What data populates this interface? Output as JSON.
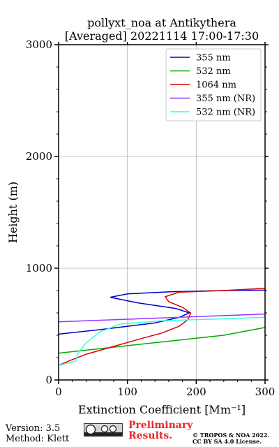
{
  "chart_data": {
    "type": "line",
    "title": "pollyxt_noa at Antikythera",
    "subtitle": "[Averaged] 20221114 17:00-17:30",
    "xlabel": "Extinction Coefficient [Mm⁻¹]",
    "ylabel": "Height (m)",
    "xlim": [
      0,
      300
    ],
    "ylim": [
      0,
      3000
    ],
    "xticks": [
      0,
      100,
      200,
      300
    ],
    "yticks": [
      0,
      1000,
      2000,
      3000
    ],
    "grid": true,
    "legend_position": "top-right",
    "series": [
      {
        "name": "355 nm",
        "color": "#0000cc",
        "points": [
          [
            0,
            410
          ],
          [
            60,
            450
          ],
          [
            140,
            510
          ],
          [
            175,
            560
          ],
          [
            190,
            600
          ],
          [
            170,
            640
          ],
          [
            115,
            690
          ],
          [
            75,
            740
          ],
          [
            100,
            770
          ],
          [
            165,
            790
          ],
          [
            240,
            800
          ],
          [
            310,
            805
          ]
        ]
      },
      {
        "name": "532 nm",
        "color": "#00aa00",
        "points": [
          [
            0,
            240
          ],
          [
            60,
            280
          ],
          [
            120,
            320
          ],
          [
            180,
            360
          ],
          [
            240,
            400
          ],
          [
            300,
            470
          ]
        ]
      },
      {
        "name": "1064 nm",
        "color": "#dd0000",
        "points": [
          [
            0,
            130
          ],
          [
            15,
            170
          ],
          [
            40,
            230
          ],
          [
            80,
            300
          ],
          [
            120,
            370
          ],
          [
            150,
            420
          ],
          [
            175,
            480
          ],
          [
            188,
            540
          ],
          [
            192,
            600
          ],
          [
            180,
            650
          ],
          [
            160,
            700
          ],
          [
            155,
            745
          ],
          [
            175,
            785
          ],
          [
            240,
            800
          ],
          [
            300,
            820
          ]
        ]
      },
      {
        "name": "355 nm (NR)",
        "color": "#9933ff",
        "points": [
          [
            0,
            520
          ],
          [
            300,
            590
          ]
        ]
      },
      {
        "name": "532 nm (NR)",
        "color": "#33ffdd",
        "points": [
          [
            0,
            130
          ],
          [
            25,
            170
          ],
          [
            28,
            240
          ],
          [
            40,
            330
          ],
          [
            60,
            430
          ],
          [
            90,
            500
          ],
          [
            150,
            530
          ],
          [
            230,
            545
          ],
          [
            300,
            560
          ]
        ]
      }
    ]
  },
  "footer": {
    "version": "Version: 3.5",
    "method": "Method: Klett",
    "preliminary_line1": "Preliminary",
    "preliminary_line2": "Results.",
    "copyright_line1": "© TROPOS & NOA 2022.",
    "copyright_line2": "CC BY SA 4.0 License."
  }
}
